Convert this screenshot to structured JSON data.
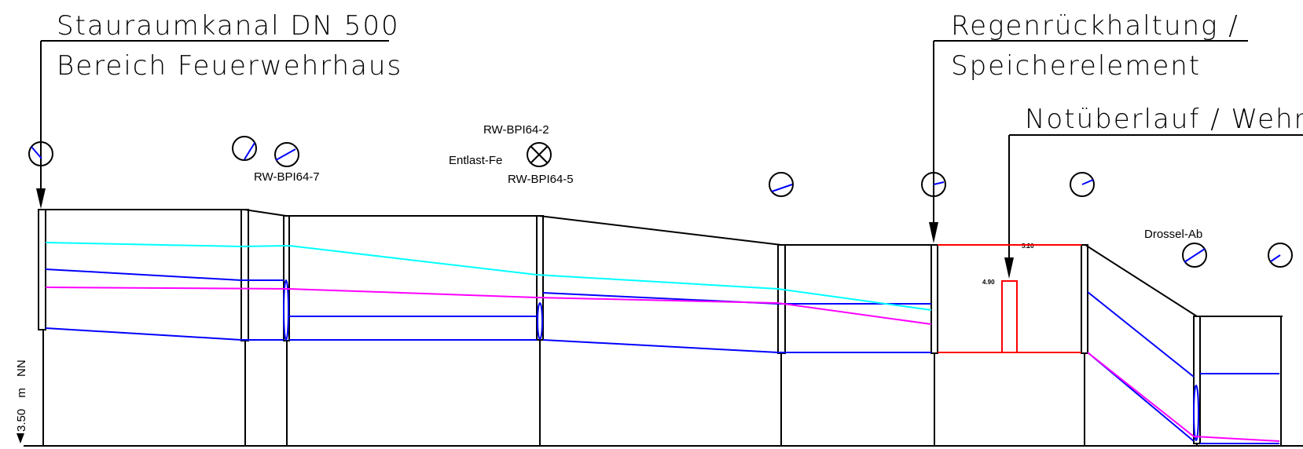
{
  "callouts": {
    "left_line1": "Stauraumkanal DN 500",
    "left_line2": "Bereich Feuerwehrhaus",
    "right_line1": "Regenrückhaltung /",
    "right_line2": "Speicherelement",
    "overflow": "Notüberlauf / Wehr"
  },
  "labels": {
    "rw7": "RW-BPI64-7",
    "rw2": "RW-BPI64-2",
    "entlast": "Entlast-Fe",
    "rw5": "RW-BPI64-5",
    "drossel": "Drossel-Ab",
    "weir_crest": "4.90",
    "tank_top": "5.20"
  },
  "axis": {
    "datum": "3.50",
    "unit": "m",
    "reference": "NN"
  },
  "colors": {
    "structure": "#000000",
    "pipe": "#0000ff",
    "energy_line": "#00ffff",
    "water_level": "#ff00ff",
    "storage": "#ff0000"
  }
}
